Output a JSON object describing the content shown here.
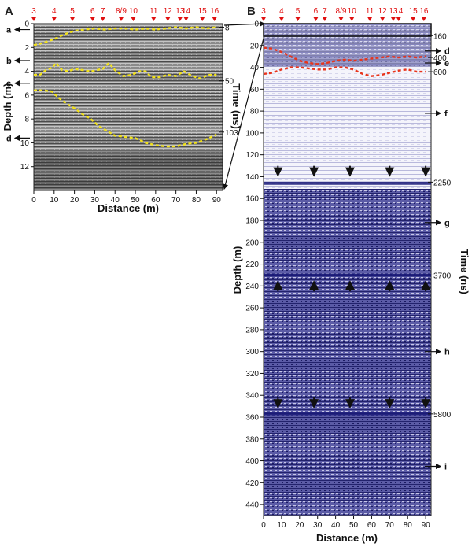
{
  "chart_data": [
    {
      "type": "scatter",
      "panel_label": "A",
      "xlabel": "Distance (m)",
      "ylabel": "Depth (m)",
      "y2label": "Time (ns)",
      "xlim": [
        0,
        93
      ],
      "ylim": [
        0,
        14
      ],
      "x_ticks": [
        0,
        10,
        20,
        30,
        40,
        50,
        60,
        70,
        80,
        90
      ],
      "y_ticks": [
        0,
        2,
        4,
        6,
        8,
        10,
        12
      ],
      "top_markers": [
        {
          "label": "3",
          "x": 0
        },
        {
          "label": "4",
          "x": 10
        },
        {
          "label": "5",
          "x": 19
        },
        {
          "label": "6",
          "x": 29
        },
        {
          "label": "7",
          "x": 34
        },
        {
          "label": "8/9",
          "x": 43
        },
        {
          "label": "10",
          "x": 49
        },
        {
          "label": "11",
          "x": 59
        },
        {
          "label": "12",
          "x": 66
        },
        {
          "label": "13",
          "x": 72
        },
        {
          "label": "14",
          "x": 75
        },
        {
          "label": "15",
          "x": 83
        },
        {
          "label": "16",
          "x": 89
        }
      ],
      "layer_labels": [
        {
          "label": "a",
          "depth": 0.5
        },
        {
          "label": "b",
          "depth": 3.1
        },
        {
          "label": "c",
          "depth": 5.0
        },
        {
          "label": "d",
          "depth": 9.6
        }
      ],
      "time_labels": [
        {
          "label": "8",
          "depth": 0.3
        },
        {
          "label": "50",
          "depth": 4.8
        },
        {
          "label": "103",
          "depth": 9.1
        }
      ],
      "series": [
        {
          "x": [
            0,
            5,
            10,
            15,
            20,
            25,
            30,
            35,
            40,
            45,
            50,
            55,
            60,
            65,
            70,
            75,
            80,
            85,
            90
          ],
          "y": [
            1.8,
            1.6,
            1.3,
            0.9,
            0.6,
            0.5,
            0.4,
            0.5,
            0.4,
            0.4,
            0.5,
            0.4,
            0.5,
            0.4,
            0.3,
            0.4,
            0.3,
            0.4,
            0.3
          ]
        },
        {
          "x": [
            0,
            3,
            6,
            9,
            11,
            14,
            17,
            20,
            24,
            28,
            31,
            34,
            37,
            40,
            44,
            48,
            52,
            55,
            58,
            62,
            66,
            70,
            74,
            78,
            82,
            86,
            90
          ],
          "y": [
            4.3,
            4.3,
            3.9,
            3.7,
            3.3,
            3.9,
            4.0,
            3.8,
            3.9,
            4.0,
            3.9,
            3.8,
            3.3,
            3.9,
            4.4,
            4.3,
            4.0,
            4.0,
            4.5,
            4.5,
            4.3,
            4.4,
            4.0,
            4.4,
            4.6,
            4.3,
            4.3
          ]
        },
        {
          "x": [
            0,
            5,
            9,
            12,
            16,
            20,
            24,
            28,
            32,
            36,
            40,
            45,
            50,
            55,
            60,
            65,
            70,
            75,
            80,
            85,
            90
          ],
          "y": [
            5.6,
            5.6,
            5.7,
            6.2,
            6.7,
            7.1,
            7.6,
            8.0,
            8.6,
            9.0,
            9.4,
            9.5,
            9.6,
            10.0,
            10.2,
            10.3,
            10.3,
            10.1,
            10.0,
            9.7,
            9.3
          ]
        }
      ]
    },
    {
      "type": "scatter",
      "panel_label": "B",
      "xlabel": "Distance (m)",
      "ylabel": "Depth (m)",
      "y2label": "Time (ns)",
      "xlim": [
        0,
        93
      ],
      "ylim": [
        0,
        450
      ],
      "x_ticks": [
        0,
        10,
        20,
        30,
        40,
        50,
        60,
        70,
        80,
        90
      ],
      "y_ticks": [
        0,
        20,
        40,
        60,
        80,
        100,
        120,
        140,
        160,
        180,
        200,
        220,
        240,
        260,
        280,
        300,
        320,
        340,
        360,
        380,
        400,
        420,
        440
      ],
      "top_markers": [
        {
          "label": "3",
          "x": 0
        },
        {
          "label": "4",
          "x": 10
        },
        {
          "label": "5",
          "x": 19
        },
        {
          "label": "6",
          "x": 29
        },
        {
          "label": "7",
          "x": 34
        },
        {
          "label": "8/9",
          "x": 43
        },
        {
          "label": "10",
          "x": 49
        },
        {
          "label": "11",
          "x": 59
        },
        {
          "label": "12",
          "x": 66
        },
        {
          "label": "13",
          "x": 72
        },
        {
          "label": "14",
          "x": 75
        },
        {
          "label": "15",
          "x": 83
        },
        {
          "label": "16",
          "x": 89
        }
      ],
      "layer_labels": [
        {
          "label": "d",
          "depth": 25
        },
        {
          "label": "e",
          "depth": 36
        },
        {
          "label": "f",
          "depth": 82
        },
        {
          "label": "g",
          "depth": 182
        },
        {
          "label": "h",
          "depth": 300
        },
        {
          "label": "i",
          "depth": 405
        }
      ],
      "time_labels": [
        {
          "label": "160",
          "depth": 11
        },
        {
          "label": "400",
          "depth": 31
        },
        {
          "label": "600",
          "depth": 44
        },
        {
          "label": "2250",
          "depth": 145
        },
        {
          "label": "3700",
          "depth": 230
        },
        {
          "label": "5800",
          "depth": 357
        }
      ],
      "down_arrows_depth": 138,
      "up_arrows_depth": 237,
      "deep_arrows_depth": 350,
      "arrow_x": [
        8,
        28,
        48,
        70,
        90
      ],
      "series": [
        {
          "x": [
            0,
            5,
            10,
            15,
            20,
            25,
            30,
            35,
            40,
            45,
            50,
            55,
            60,
            65,
            70,
            75,
            80,
            85,
            90
          ],
          "y": [
            22,
            23,
            26,
            30,
            34,
            36,
            37,
            36,
            34,
            33,
            34,
            33,
            32,
            31,
            30,
            31,
            30,
            31,
            30
          ]
        },
        {
          "x": [
            0,
            5,
            10,
            15,
            20,
            25,
            30,
            35,
            40,
            45,
            50,
            55,
            60,
            65,
            70,
            75,
            80,
            85,
            90
          ],
          "y": [
            46,
            45,
            42,
            40,
            40,
            41,
            42,
            42,
            40,
            40,
            42,
            46,
            48,
            47,
            45,
            43,
            42,
            44,
            44
          ]
        }
      ]
    }
  ]
}
